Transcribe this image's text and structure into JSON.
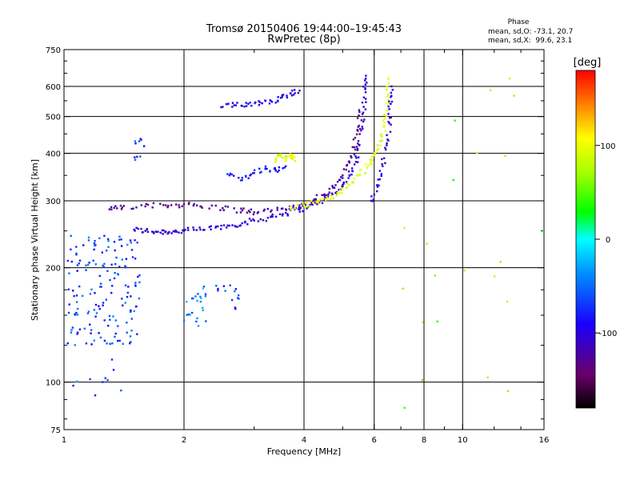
{
  "chart_data": {
    "type": "scatter",
    "title": "Tromsø 20150406 19:44:00–19:45:43",
    "subtitle": "RwPretec (8p)",
    "xlabel": "Frequency [MHz]",
    "ylabel": "Stationary phase Virtual Height [km]",
    "x_scale": "log",
    "y_scale": "log",
    "xlim": [
      1,
      16
    ],
    "ylim": [
      75,
      750
    ],
    "x_ticks": [
      1,
      2,
      4,
      6,
      8,
      10,
      16
    ],
    "y_ticks": [
      75,
      100,
      200,
      300,
      400,
      500,
      600,
      750
    ],
    "x_gridlines": [
      2,
      4,
      6,
      8,
      10
    ],
    "y_gridlines": [
      100,
      200,
      300,
      400,
      500,
      600
    ],
    "phase_stats": {
      "header": "Phase",
      "line_o": "mean, sd,O: -73.1, 20.7",
      "line_x": "mean, sd,X:  99.6, 23.1"
    },
    "colorbar": {
      "label": "[deg]",
      "range": [
        -180,
        180
      ],
      "ticks": [
        100,
        0,
        -100
      ],
      "colormap": "rainbow (black-purple-blue-cyan-green-yellow-red)"
    },
    "traces": [
      {
        "name_hint": "o-mode F trace lower",
        "phase": -105,
        "points": [
          [
            1.5,
            252
          ],
          [
            1.6,
            250
          ],
          [
            1.7,
            249
          ],
          [
            1.8,
            249
          ],
          [
            1.9,
            249
          ],
          [
            2.0,
            250
          ],
          [
            2.2,
            252
          ],
          [
            2.4,
            255
          ],
          [
            2.6,
            258
          ],
          [
            2.8,
            262
          ],
          [
            3.0,
            266
          ],
          [
            3.3,
            272
          ],
          [
            3.6,
            279
          ],
          [
            3.9,
            285
          ],
          [
            4.2,
            293
          ],
          [
            4.5,
            302
          ],
          [
            4.8,
            315
          ],
          [
            5.0,
            330
          ],
          [
            5.2,
            350
          ],
          [
            5.4,
            380
          ],
          [
            5.5,
            420
          ],
          [
            5.6,
            470
          ],
          [
            5.65,
            530
          ],
          [
            5.7,
            590
          ],
          [
            5.72,
            640
          ]
        ]
      },
      {
        "name_hint": "o-mode F trace upper",
        "phase": -125,
        "points": [
          [
            1.3,
            285
          ],
          [
            1.4,
            288
          ],
          [
            1.6,
            290
          ],
          [
            1.8,
            292
          ],
          [
            2.0,
            294
          ],
          [
            2.2,
            290
          ],
          [
            2.5,
            287
          ],
          [
            2.8,
            283
          ],
          [
            3.0,
            280
          ],
          [
            3.3,
            281
          ],
          [
            3.6,
            285
          ],
          [
            3.9,
            292
          ],
          [
            4.2,
            300
          ],
          [
            4.5,
            312
          ],
          [
            4.8,
            330
          ],
          [
            5.0,
            350
          ],
          [
            5.2,
            378
          ],
          [
            5.35,
            415
          ],
          [
            5.45,
            460
          ],
          [
            5.5,
            520
          ]
        ]
      },
      {
        "name_hint": "x-mode F trace",
        "phase": 95,
        "points": [
          [
            3.7,
            290
          ],
          [
            4.0,
            292
          ],
          [
            4.3,
            298
          ],
          [
            4.6,
            305
          ],
          [
            4.9,
            315
          ],
          [
            5.2,
            330
          ],
          [
            5.5,
            350
          ],
          [
            5.8,
            372
          ],
          [
            6.0,
            395
          ],
          [
            6.2,
            430
          ],
          [
            6.35,
            470
          ],
          [
            6.45,
            520
          ],
          [
            6.5,
            570
          ],
          [
            6.52,
            630
          ]
        ]
      },
      {
        "name_hint": "high-altitude x echo",
        "phase": -100,
        "points": [
          [
            5.9,
            300
          ],
          [
            6.1,
            330
          ],
          [
            6.3,
            370
          ],
          [
            6.45,
            420
          ],
          [
            6.55,
            480
          ],
          [
            6.6,
            540
          ],
          [
            6.63,
            600
          ]
        ]
      },
      {
        "name_hint": "multiple echo near 550 km",
        "phase": -95,
        "points": [
          [
            2.5,
            530
          ],
          [
            2.7,
            535
          ],
          [
            2.9,
            540
          ],
          [
            3.1,
            545
          ],
          [
            3.3,
            550
          ],
          [
            3.5,
            560
          ],
          [
            3.7,
            575
          ],
          [
            3.9,
            585
          ]
        ]
      },
      {
        "name_hint": "spread F 360 km",
        "phase": -85,
        "points": [
          [
            2.6,
            350
          ],
          [
            2.8,
            345
          ],
          [
            3.0,
            355
          ],
          [
            3.2,
            365
          ],
          [
            3.4,
            360
          ],
          [
            3.6,
            370
          ]
        ]
      },
      {
        "name_hint": "x echo 390 km",
        "phase": 95,
        "points": [
          [
            3.4,
            385
          ],
          [
            3.5,
            392
          ],
          [
            3.6,
            388
          ],
          [
            3.7,
            395
          ],
          [
            3.8,
            382
          ]
        ]
      }
    ],
    "clusters": [
      {
        "name_hint": "low-frequency spread E/F cloud",
        "phase": -65,
        "x_range": [
          1.02,
          1.55
        ],
        "y_range": [
          125,
          245
        ],
        "count": 160
      },
      {
        "name_hint": "low echoes",
        "phase": -60,
        "x_range": [
          1.02,
          1.4
        ],
        "y_range": [
          90,
          115
        ],
        "count": 10
      },
      {
        "name_hint": "echo near 1.55 MHz",
        "phase": -75,
        "x_range": [
          1.5,
          1.6
        ],
        "y_range": [
          380,
          440
        ],
        "count": 10
      },
      {
        "name_hint": "echoes near 2.1 MHz",
        "phase": -40,
        "x_range": [
          2.0,
          2.3
        ],
        "y_range": [
          140,
          185
        ],
        "count": 25
      },
      {
        "name_hint": "echoes near 2.6 MHz",
        "phase": -70,
        "x_range": [
          2.4,
          2.8
        ],
        "y_range": [
          155,
          180
        ],
        "count": 14
      },
      {
        "name_hint": "scattered high-frequency echoes",
        "phase": 60,
        "x_range": [
          6.8,
          16
        ],
        "y_range": [
          85,
          650
        ],
        "count": 22
      }
    ]
  }
}
